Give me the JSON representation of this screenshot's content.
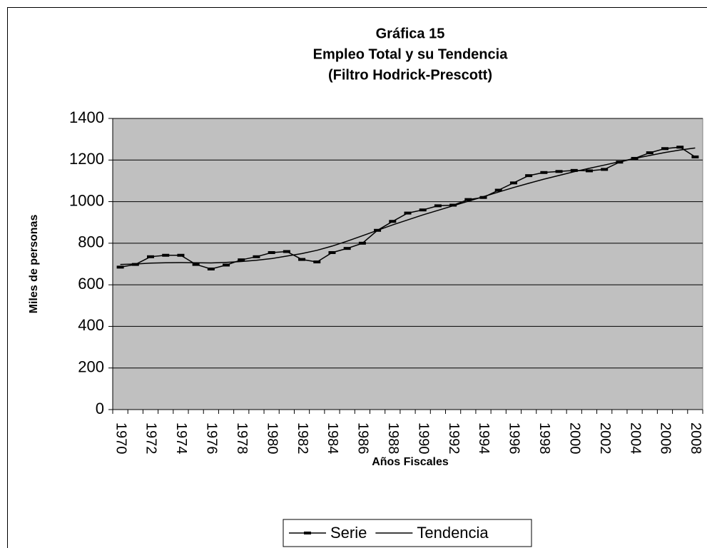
{
  "chart_data": {
    "type": "line",
    "title": [
      "Gráfica 15",
      "Empleo Total y su Tendencia",
      "(Filtro Hodrick-Prescott)"
    ],
    "x_label": "Años Fiscales",
    "y_label": "Miles de personas",
    "categories": [
      "1970",
      null,
      "1972",
      null,
      "1974",
      null,
      "1976",
      null,
      "1978",
      null,
      "1980",
      null,
      "1982",
      null,
      "1984",
      null,
      "1986",
      null,
      "1988",
      null,
      "1990",
      null,
      "1992",
      null,
      "1994",
      null,
      "1996",
      null,
      "1998",
      null,
      "2000",
      null,
      "2002",
      null,
      "2004",
      null,
      "2006",
      null,
      "2008"
    ],
    "series": [
      {
        "name": "Serie",
        "color": "#000000",
        "marker": "dash",
        "values": [
          685,
          698,
          735,
          742,
          742,
          698,
          676,
          695,
          720,
          735,
          755,
          760,
          722,
          710,
          755,
          775,
          800,
          862,
          905,
          945,
          960,
          980,
          983,
          1010,
          1020,
          1055,
          1090,
          1125,
          1140,
          1145,
          1150,
          1148,
          1155,
          1190,
          1208,
          1235,
          1255,
          1262,
          1215
        ]
      },
      {
        "name": "Tendencia",
        "color": "#000000",
        "values": [
          698,
          700,
          704,
          706,
          707,
          706,
          705,
          708,
          712,
          718,
          726,
          738,
          750,
          766,
          786,
          810,
          836,
          862,
          888,
          912,
          936,
          958,
          980,
          1002,
          1024,
          1046,
          1068,
          1088,
          1108,
          1126,
          1144,
          1160,
          1176,
          1192,
          1208,
          1222,
          1236,
          1248,
          1258
        ]
      }
    ],
    "ylim": [
      0,
      1400
    ],
    "yticks": [
      0,
      200,
      400,
      600,
      800,
      1000,
      1200,
      1400
    ],
    "grid": true,
    "legend": "bottom",
    "plot_background": "#c0c0c0"
  }
}
